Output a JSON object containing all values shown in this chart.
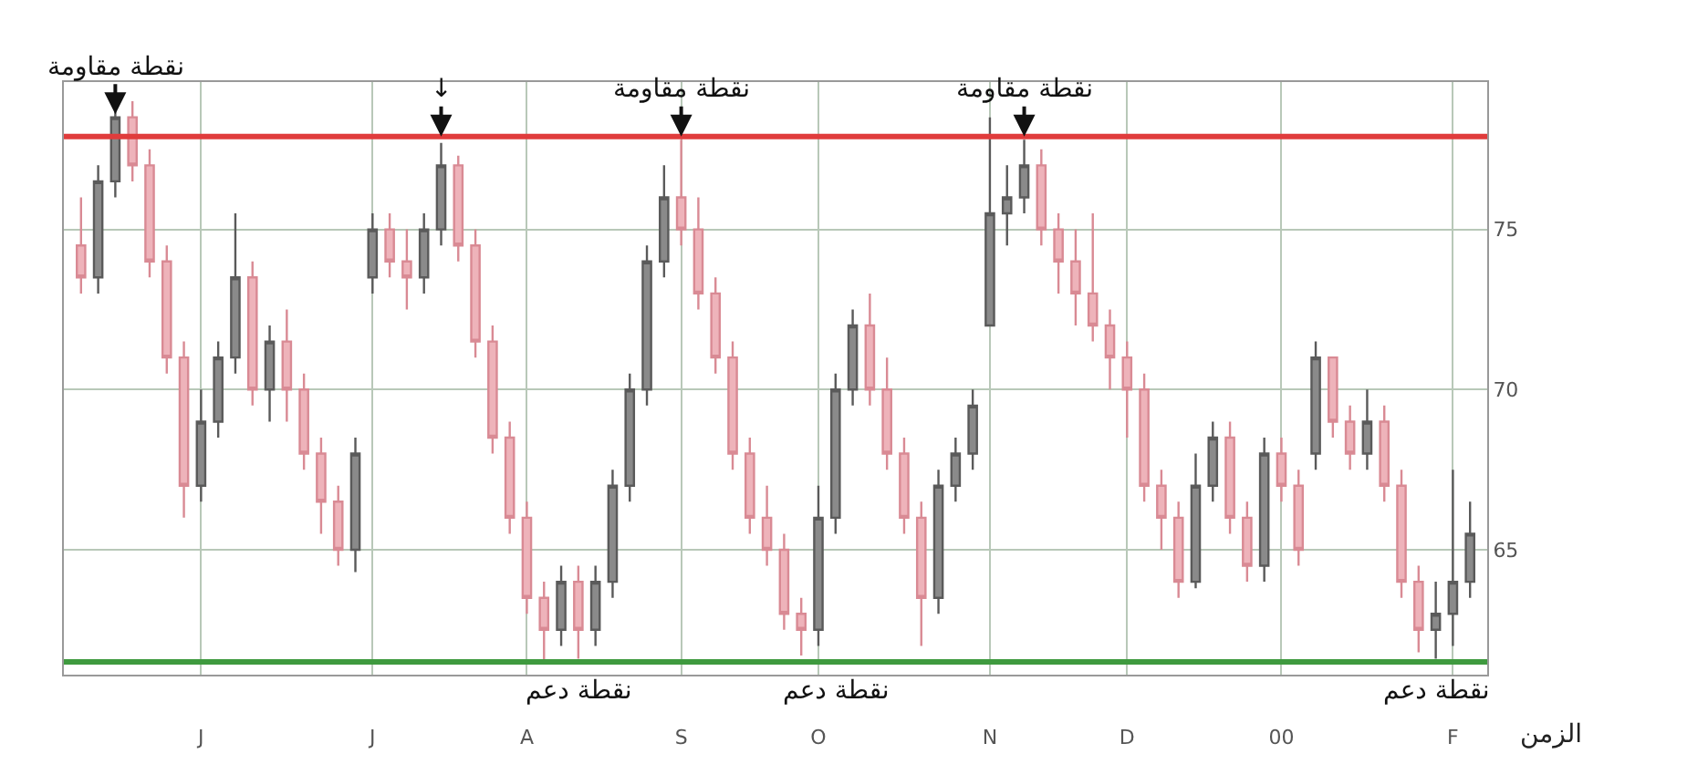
{
  "chart_data": {
    "type": "candlestick",
    "xlabel": "الزمن",
    "categories": [
      null,
      null,
      null,
      null,
      null,
      null,
      null,
      "J",
      null,
      null,
      null,
      null,
      null,
      null,
      null,
      null,
      null,
      "J",
      null,
      null,
      null,
      null,
      null,
      null,
      null,
      null,
      "A",
      null,
      null,
      null,
      null,
      null,
      null,
      null,
      null,
      "S",
      null,
      null,
      null,
      null,
      null,
      null,
      null,
      "O",
      null,
      null,
      null,
      null,
      null,
      null,
      null,
      null,
      null,
      "N",
      null,
      null,
      null,
      null,
      null,
      null,
      null,
      "D",
      null,
      null,
      null,
      null,
      null,
      null,
      null,
      null,
      "00",
      null,
      null,
      null,
      null,
      null,
      null,
      null,
      null,
      null,
      "F",
      null
    ],
    "ohlc": [
      [
        74.5,
        76,
        73,
        73.5
      ],
      [
        73.5,
        77,
        73,
        76.5
      ],
      [
        76.5,
        79.2,
        76,
        78.5
      ],
      [
        78.5,
        79,
        76.5,
        77
      ],
      [
        77,
        77.5,
        73.5,
        74
      ],
      [
        74,
        74.5,
        70.5,
        71
      ],
      [
        71,
        71.5,
        66,
        67
      ],
      [
        67,
        70,
        66.5,
        69
      ],
      [
        69,
        71.5,
        68.5,
        71
      ],
      [
        71,
        75.5,
        70.5,
        73.5
      ],
      [
        73.5,
        74,
        69.5,
        70
      ],
      [
        70,
        72,
        69,
        71.5
      ],
      [
        71.5,
        72.5,
        69,
        70
      ],
      [
        70,
        70.5,
        67.5,
        68
      ],
      [
        68,
        68.5,
        65.5,
        66.5
      ],
      [
        66.5,
        67,
        64.5,
        65
      ],
      [
        65,
        68.5,
        64.3,
        68
      ],
      [
        73.5,
        75.5,
        73,
        75
      ],
      [
        75,
        75.5,
        73.5,
        74
      ],
      [
        74,
        75,
        72.5,
        73.5
      ],
      [
        73.5,
        75.5,
        73,
        75
      ],
      [
        75,
        77.7,
        74.5,
        77
      ],
      [
        77,
        77.3,
        74,
        74.5
      ],
      [
        74.5,
        75,
        71,
        71.5
      ],
      [
        71.5,
        72,
        68,
        68.5
      ],
      [
        68.5,
        69,
        65.5,
        66
      ],
      [
        66,
        66.5,
        63,
        63.5
      ],
      [
        63.5,
        64,
        61.5,
        62.5
      ],
      [
        62.5,
        64.5,
        62,
        64
      ],
      [
        64,
        64.5,
        61.6,
        62.5
      ],
      [
        62.5,
        64.5,
        62,
        64
      ],
      [
        64,
        67.5,
        63.5,
        67
      ],
      [
        67,
        70.5,
        66.5,
        70
      ],
      [
        70,
        74.5,
        69.5,
        74
      ],
      [
        74,
        77,
        73.5,
        76
      ],
      [
        76,
        77.8,
        74.5,
        75
      ],
      [
        75,
        76,
        72.5,
        73
      ],
      [
        73,
        73.5,
        70.5,
        71
      ],
      [
        71,
        71.5,
        67.5,
        68
      ],
      [
        68,
        68.5,
        65.5,
        66
      ],
      [
        66,
        67,
        64.5,
        65
      ],
      [
        65,
        65.5,
        62.5,
        63
      ],
      [
        63,
        63.5,
        61.7,
        62.5
      ],
      [
        62.5,
        67,
        62,
        66
      ],
      [
        66,
        70.5,
        65.5,
        70
      ],
      [
        70,
        72.5,
        69.5,
        72
      ],
      [
        72,
        73,
        69.5,
        70
      ],
      [
        70,
        71,
        67.5,
        68
      ],
      [
        68,
        68.5,
        65.5,
        66
      ],
      [
        66,
        66.5,
        62,
        63.5
      ],
      [
        63.5,
        67.5,
        63,
        67
      ],
      [
        67,
        68.5,
        66.5,
        68
      ],
      [
        68,
        70,
        67.5,
        69.5
      ],
      [
        72,
        78.5,
        72,
        75.5
      ],
      [
        75.5,
        77,
        74.5,
        76
      ],
      [
        76,
        77.8,
        75.5,
        77
      ],
      [
        77,
        77.5,
        74.5,
        75
      ],
      [
        75,
        75.5,
        73,
        74
      ],
      [
        74,
        75,
        72,
        73
      ],
      [
        73,
        75.5,
        71.5,
        72
      ],
      [
        72,
        72.5,
        70,
        71
      ],
      [
        71,
        71.5,
        68.5,
        70
      ],
      [
        70,
        70.5,
        66.5,
        67
      ],
      [
        67,
        67.5,
        65,
        66
      ],
      [
        66,
        66.5,
        63.5,
        64
      ],
      [
        64,
        68,
        63.8,
        67
      ],
      [
        67,
        69,
        66.5,
        68.5
      ],
      [
        68.5,
        69,
        65.5,
        66
      ],
      [
        66,
        66.5,
        64,
        64.5
      ],
      [
        64.5,
        68.5,
        64,
        68
      ],
      [
        68,
        68.5,
        66.5,
        67
      ],
      [
        67,
        67.5,
        64.5,
        65
      ],
      [
        68,
        71.5,
        67.5,
        71
      ],
      [
        71,
        71,
        68.5,
        69
      ],
      [
        69,
        69.5,
        67.5,
        68
      ],
      [
        68,
        70,
        67.5,
        69
      ],
      [
        69,
        69.5,
        66.5,
        67
      ],
      [
        67,
        67.5,
        63.5,
        64
      ],
      [
        64,
        64.5,
        61.8,
        62.5
      ],
      [
        62.5,
        64,
        61.6,
        63
      ],
      [
        63,
        67.5,
        62,
        64
      ],
      [
        64,
        66.5,
        63.5,
        65.5
      ]
    ],
    "ylim": [
      61.1,
      79.6
    ],
    "yticks": [
      65,
      70,
      75
    ],
    "grid": true,
    "ref_lines": [
      {
        "axis": "y",
        "value": 77.9,
        "color": "#e03c3c"
      },
      {
        "axis": "y",
        "value": 61.5,
        "color": "#3f9a3f"
      }
    ],
    "annotations": [
      {
        "text": "نقطة مقاومة",
        "y": 78.6
      },
      {
        "text": "↓",
        "y": 77.9
      },
      {
        "text": "نقطة مقاومة",
        "y": 77.9
      },
      {
        "text": "نقطة مقاومة",
        "y": 77.9
      },
      {
        "text": "نقطة دعم",
        "y": 61.5
      },
      {
        "text": "نقطة دعم",
        "y": 61.5
      },
      {
        "text": "نقطة دعم",
        "y": 61.5
      }
    ]
  }
}
